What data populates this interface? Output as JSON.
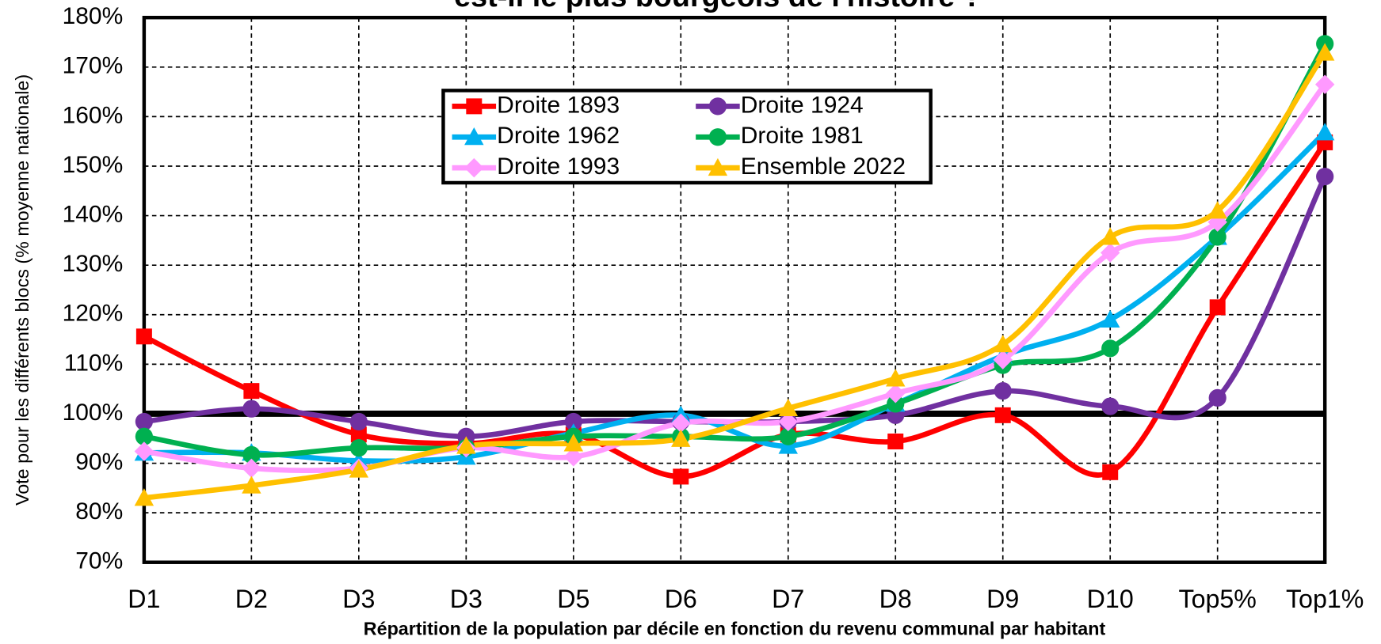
{
  "chart_data": {
    "type": "line",
    "title": "est-il le plus bourgeois de l'histoire ?",
    "x_label": "Répartition de la population par décile en fonction du revenu communal par habitant",
    "y_label": "Vote pour les différents blocs (% moyenne nationale)",
    "categories": [
      "D1",
      "D2",
      "D3",
      "D3",
      "D5",
      "D6",
      "D7",
      "D8",
      "D9",
      "D10",
      "Top5%",
      "Top1%"
    ],
    "ylim": [
      70,
      180
    ],
    "yticks": [
      {
        "value": 70,
        "label": "70%"
      },
      {
        "value": 80,
        "label": "80%"
      },
      {
        "value": 90,
        "label": "90%"
      },
      {
        "value": 100,
        "label": "100%"
      },
      {
        "value": 110,
        "label": "110%"
      },
      {
        "value": 120,
        "label": "120%"
      },
      {
        "value": 130,
        "label": "130%"
      },
      {
        "value": 140,
        "label": "140%"
      },
      {
        "value": 150,
        "label": "150%"
      },
      {
        "value": 160,
        "label": "160%"
      },
      {
        "value": 170,
        "label": "170%"
      },
      {
        "value": 180,
        "label": "180%"
      }
    ],
    "grid": true,
    "reference_line": 100,
    "series": [
      {
        "name": "Droite 1893",
        "color": "#ff0000",
        "marker": "square",
        "values": [
          115.6,
          104.6,
          95.8,
          94,
          95.8,
          87.3,
          95.8,
          94.4,
          99.7,
          88.2,
          121.5,
          154.8
        ]
      },
      {
        "name": "Droite 1924",
        "color": "#7030a0",
        "marker": "circle",
        "values": [
          98.4,
          101,
          98.4,
          95.4,
          98.4,
          98.4,
          98.4,
          99.7,
          104.6,
          101.5,
          103.2,
          147.9
        ]
      },
      {
        "name": "Droite 1962",
        "color": "#00b0f0",
        "marker": "triangle",
        "values": [
          92.1,
          92.1,
          90.5,
          91.3,
          96.1,
          99.7,
          93.5,
          102,
          111.7,
          119,
          135.7,
          156.8
        ]
      },
      {
        "name": "Droite 1981",
        "color": "#00b050",
        "marker": "circle",
        "values": [
          95.4,
          91.7,
          93.1,
          93.1,
          95.4,
          95.4,
          95.4,
          102,
          109.8,
          113.2,
          135.7,
          174.7
        ]
      },
      {
        "name": "Droite 1993",
        "color": "#ff99ff",
        "marker": "diamond",
        "values": [
          92.4,
          89,
          89,
          93.1,
          91.3,
          98.1,
          98.4,
          104.1,
          110.9,
          132.5,
          138.7,
          166.5
        ]
      },
      {
        "name": "Ensemble 2022",
        "color": "#ffc000",
        "marker": "triangle",
        "values": [
          83,
          85.5,
          88.7,
          93.5,
          94,
          94.9,
          101.1,
          107.1,
          114,
          135.7,
          141,
          172.9
        ]
      }
    ]
  }
}
